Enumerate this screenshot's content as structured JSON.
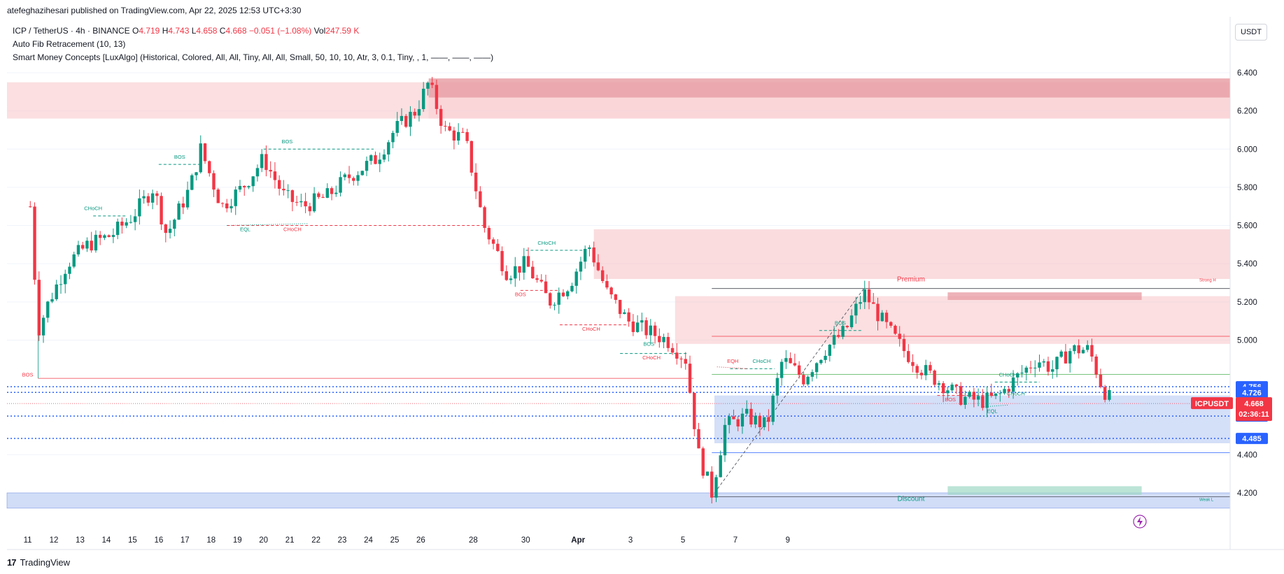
{
  "header": {
    "publisher": "atefeghazihesari published on TradingView.com, Apr 22, 2025 12:53 UTC+3:30"
  },
  "legend": {
    "symbol": "ICP / TetherUS · 4h · BINANCE",
    "o_label": "O",
    "o": "4.719",
    "h_label": "H",
    "h": "4.743",
    "l_label": "L",
    "l": "4.658",
    "c_label": "C",
    "c": "4.668",
    "change": "−0.051 (−1.08%)",
    "vol_label": "Vol",
    "vol": "247.59 K",
    "indicator1": "Auto Fib Retracement (10, 13)",
    "indicator2": "Smart Money Concepts [LuxAlgo] (Historical, Colored, All, All, Tiny, All, All, Small, 50, 10, 10, Atr, 3, 0.1, Tiny, , 1, ——, ——, ——)"
  },
  "currency_button": "USDT",
  "footer": {
    "brand": "TradingView",
    "logo": "17"
  },
  "colors": {
    "up": "#089981",
    "down": "#f23645",
    "supply": "#f7c5c8",
    "supply_strong": "#e8a0a6",
    "demand": "#c6d4f5",
    "fib_blue": "#2962ff",
    "grid": "#f0f3fa"
  },
  "chart_data": {
    "type": "candlestick",
    "symbol": "ICPUSDT",
    "timeframe": "4h",
    "ylim": [
      4.1,
      6.45
    ],
    "y_ticks": [
      "6.400",
      "6.200",
      "6.000",
      "5.800",
      "5.600",
      "5.400",
      "5.200",
      "5.000",
      "4.400",
      "4.200"
    ],
    "x_ticks": [
      "12",
      "14",
      "16",
      "18",
      "20",
      "22",
      "24",
      "26",
      "28",
      "30",
      "Apr",
      "3",
      "5",
      "7",
      "9",
      "11",
      "13",
      "15",
      "17",
      "19",
      "21",
      "23",
      "25"
    ],
    "price_labels": [
      {
        "text": "4.756",
        "value": 4.756,
        "color": "#2962ff"
      },
      {
        "text": "4.726",
        "value": 4.726,
        "color": "#2962ff"
      },
      {
        "text": "4.602",
        "value": 4.602,
        "color": "#2962ff"
      },
      {
        "text": "4.485",
        "value": 4.485,
        "color": "#2962ff"
      }
    ],
    "current": {
      "symbol": "ICPUSDT",
      "price": "4.668",
      "countdown": "02:36:11",
      "color": "#f23645"
    },
    "zone_labels": [
      "Premium",
      "Discount",
      "Strong H",
      "Weak L"
    ],
    "structure_labels": [
      "BOS",
      "BOS",
      "CHoCH",
      "EQL",
      "CHoCH",
      "CHoCH",
      "BOS",
      "CHoCH",
      "BOS",
      "CHoCH",
      "BOS",
      "BOS",
      "EQH",
      "CHoCH",
      "BOS",
      "CHoCH",
      "CHoCH",
      "EQL"
    ],
    "candles_close_path": [
      {
        "day": 11.1,
        "close": 5.7
      },
      {
        "day": 11.4,
        "close": 5.05
      },
      {
        "day": 11.8,
        "close": 5.2
      },
      {
        "day": 12.5,
        "close": 5.4
      },
      {
        "day": 13.3,
        "close": 5.5
      },
      {
        "day": 14.2,
        "close": 5.55
      },
      {
        "day": 15.0,
        "close": 5.65
      },
      {
        "day": 15.8,
        "close": 5.8
      },
      {
        "day": 16.3,
        "close": 5.55
      },
      {
        "day": 17.2,
        "close": 5.8
      },
      {
        "day": 17.6,
        "close": 6.0
      },
      {
        "day": 18.4,
        "close": 5.7
      },
      {
        "day": 19.2,
        "close": 5.8
      },
      {
        "day": 20.0,
        "close": 5.95
      },
      {
        "day": 20.8,
        "close": 5.75
      },
      {
        "day": 21.5,
        "close": 5.7
      },
      {
        "day": 22.4,
        "close": 5.75
      },
      {
        "day": 23.2,
        "close": 5.85
      },
      {
        "day": 24.3,
        "close": 5.95
      },
      {
        "day": 25.0,
        "close": 6.1
      },
      {
        "day": 25.8,
        "close": 6.2
      },
      {
        "day": 26.3,
        "close": 6.35
      },
      {
        "day": 26.9,
        "close": 6.1
      },
      {
        "day": 27.7,
        "close": 6.05
      },
      {
        "day": 28.4,
        "close": 5.6
      },
      {
        "day": 29.3,
        "close": 5.35
      },
      {
        "day": 30.0,
        "close": 5.4
      },
      {
        "day": 30.9,
        "close": 5.2
      },
      {
        "day": 31.7,
        "close": 5.3
      },
      {
        "day": 32.4,
        "close": 5.5
      },
      {
        "day": 33.1,
        "close": 5.25
      },
      {
        "day": 33.9,
        "close": 5.1
      },
      {
        "day": 34.6,
        "close": 5.05
      },
      {
        "day": 35.4,
        "close": 5.0
      },
      {
        "day": 36.1,
        "close": 4.9
      },
      {
        "day": 36.6,
        "close": 4.4
      },
      {
        "day": 37.1,
        "close": 4.2
      },
      {
        "day": 37.6,
        "close": 4.55
      },
      {
        "day": 38.4,
        "close": 4.6
      },
      {
        "day": 39.2,
        "close": 4.55
      },
      {
        "day": 39.8,
        "close": 4.9
      },
      {
        "day": 40.6,
        "close": 4.8
      },
      {
        "day": 41.4,
        "close": 4.95
      },
      {
        "day": 42.2,
        "close": 5.05
      },
      {
        "day": 42.9,
        "close": 5.25
      },
      {
        "day": 43.6,
        "close": 5.1
      },
      {
        "day": 44.4,
        "close": 4.95
      },
      {
        "day": 45.1,
        "close": 4.85
      },
      {
        "day": 45.8,
        "close": 4.78
      },
      {
        "day": 46.6,
        "close": 4.7
      },
      {
        "day": 47.4,
        "close": 4.68
      },
      {
        "day": 48.0,
        "close": 4.7
      },
      {
        "day": 48.7,
        "close": 4.8
      },
      {
        "day": 49.5,
        "close": 4.9
      },
      {
        "day": 50.1,
        "close": 4.85
      },
      {
        "day": 50.8,
        "close": 4.95
      },
      {
        "day": 51.5,
        "close": 4.95
      },
      {
        "day": 52.0,
        "close": 4.75
      },
      {
        "day": 52.4,
        "close": 4.67
      }
    ]
  }
}
